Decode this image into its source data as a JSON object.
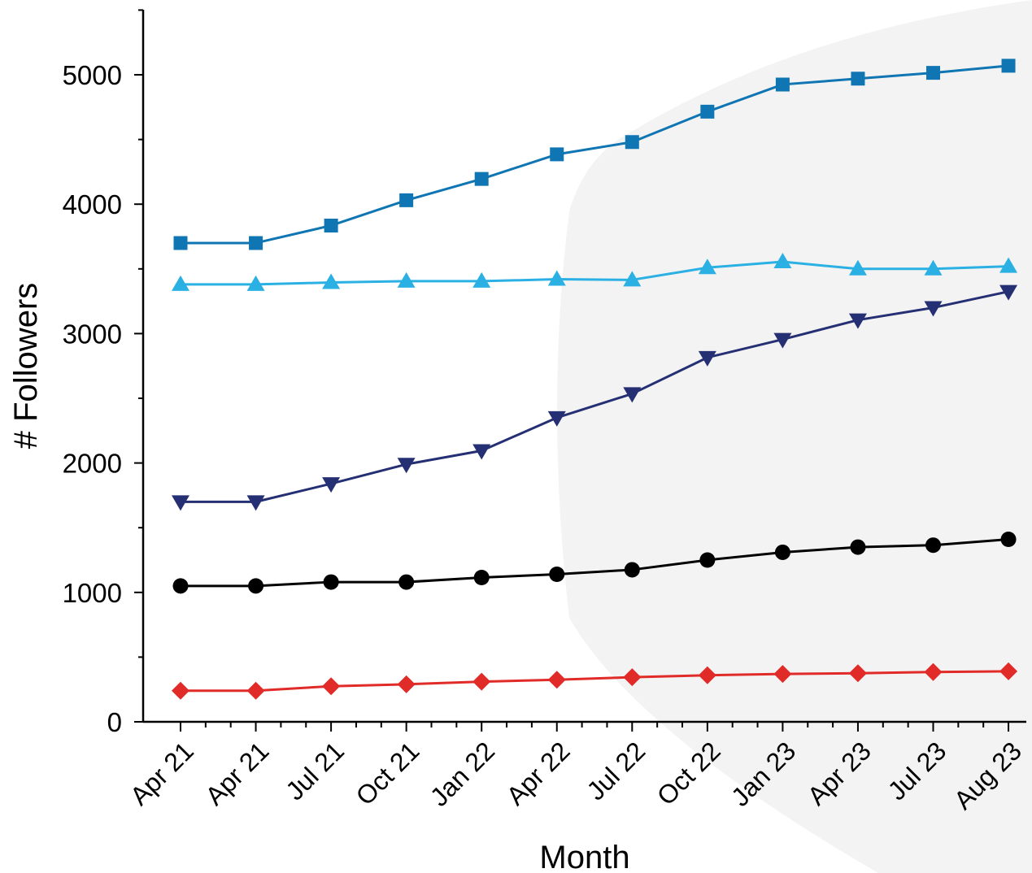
{
  "chart_data": {
    "type": "line",
    "title": "",
    "xlabel": "Month",
    "ylabel": "# Followers",
    "categories": [
      "Apr 21",
      "Apr 21",
      "Jul 21",
      "Oct 21",
      "Jan 22",
      "Apr 22",
      "Jul 22",
      "Oct 22",
      "Jan 23",
      "Apr 23",
      "Jul 23",
      "Aug 23"
    ],
    "ylim": [
      0,
      5500
    ],
    "yticks": [
      0,
      1000,
      2000,
      3000,
      4000,
      5000
    ],
    "grid": false,
    "legend": "none",
    "series": [
      {
        "marker": "square",
        "color": "#0f75b3",
        "values": [
          3700,
          3700,
          3835,
          4030,
          4195,
          4385,
          4480,
          4715,
          4925,
          4970,
          5015,
          5070
        ]
      },
      {
        "marker": "triangle-up",
        "color": "#2bb0e4",
        "values": [
          3380,
          3380,
          3395,
          3405,
          3405,
          3420,
          3415,
          3510,
          3555,
          3500,
          3500,
          3520
        ]
      },
      {
        "marker": "triangle-down",
        "color": "#252f73",
        "values": [
          1700,
          1700,
          1840,
          1990,
          2095,
          2350,
          2535,
          2815,
          2955,
          3105,
          3200,
          3325
        ]
      },
      {
        "marker": "circle",
        "color": "#000000",
        "values": [
          1050,
          1050,
          1080,
          1080,
          1115,
          1140,
          1175,
          1250,
          1310,
          1350,
          1365,
          1410
        ]
      },
      {
        "marker": "diamond",
        "color": "#e02b28",
        "values": [
          240,
          240,
          275,
          290,
          310,
          325,
          345,
          360,
          370,
          375,
          385,
          390
        ]
      }
    ]
  }
}
